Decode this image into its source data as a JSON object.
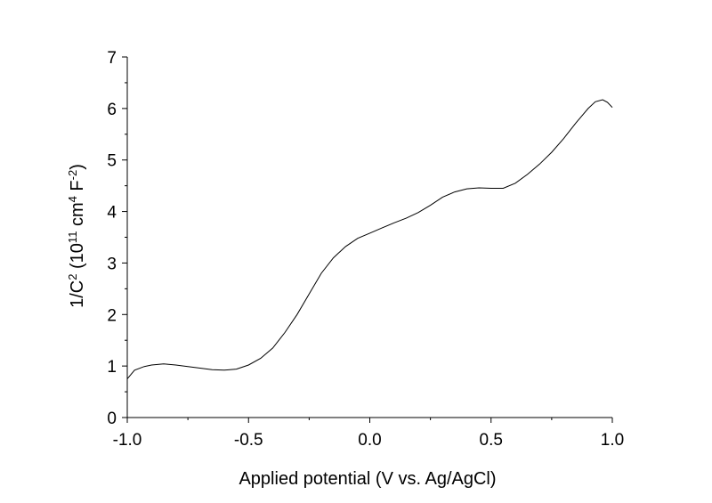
{
  "chart_data": {
    "type": "line",
    "title": "",
    "xlabel": "Applied potential (V vs. Ag/AgCl)",
    "ylabel": {
      "prefix": "1/C",
      "sup1": "2",
      "middle": " (10",
      "sup2": "11",
      "unit": " cm",
      "sup3": "4",
      "unit2": " F",
      "sup4": "-2",
      "suffix": ")"
    },
    "xlim": [
      -1.0,
      1.0
    ],
    "ylim": [
      0,
      7
    ],
    "xticks": [
      "-1.0",
      "-0.5",
      "0.0",
      "0.5",
      "1.0"
    ],
    "yticks": [
      "0",
      "1",
      "2",
      "3",
      "4",
      "5",
      "6",
      "7"
    ],
    "grid": false,
    "line_color": "#000000",
    "series": [
      {
        "x": [
          -1.0,
          -0.97,
          -0.93,
          -0.9,
          -0.85,
          -0.8,
          -0.75,
          -0.7,
          -0.65,
          -0.6,
          -0.55,
          -0.5,
          -0.45,
          -0.4,
          -0.35,
          -0.3,
          -0.25,
          -0.2,
          -0.15,
          -0.1,
          -0.05,
          0.0,
          0.05,
          0.1,
          0.15,
          0.2,
          0.25,
          0.3,
          0.35,
          0.4,
          0.45,
          0.5,
          0.55,
          0.6,
          0.65,
          0.7,
          0.75,
          0.8,
          0.85,
          0.9,
          0.93,
          0.96,
          0.98,
          1.0
        ],
        "y": [
          0.75,
          0.92,
          0.99,
          1.02,
          1.04,
          1.02,
          0.99,
          0.96,
          0.93,
          0.92,
          0.94,
          1.02,
          1.15,
          1.35,
          1.65,
          2.0,
          2.4,
          2.8,
          3.1,
          3.32,
          3.48,
          3.58,
          3.68,
          3.78,
          3.87,
          3.98,
          4.12,
          4.28,
          4.38,
          4.44,
          4.46,
          4.45,
          4.45,
          4.55,
          4.72,
          4.92,
          5.15,
          5.42,
          5.72,
          6.0,
          6.13,
          6.17,
          6.12,
          6.02
        ]
      }
    ]
  }
}
